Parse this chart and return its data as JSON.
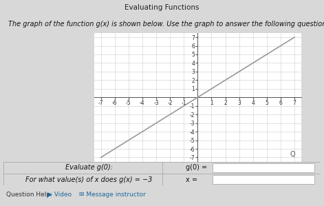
{
  "title": "Evaluating Functions",
  "description": "The graph of the function g(x) is shown below. Use the graph to answer the following questions.",
  "line_x": [
    -7,
    7
  ],
  "line_y": [
    -7,
    7
  ],
  "line_color": "#999999",
  "line_width": 1.2,
  "xlim": [
    -7.5,
    7.5
  ],
  "ylim": [
    -7.5,
    7.5
  ],
  "xticks": [
    -7,
    -6,
    -5,
    -4,
    -3,
    -2,
    -1,
    1,
    2,
    3,
    4,
    5,
    6,
    7
  ],
  "yticks": [
    -7,
    -6,
    -5,
    -4,
    -3,
    -2,
    -1,
    1,
    2,
    3,
    4,
    5,
    6,
    7
  ],
  "grid_color": "#cccccc",
  "grid_linewidth": 0.4,
  "axis_color": "#555555",
  "page_bg": "#d8d8d8",
  "content_bg": "#e8e8e8",
  "graph_bg": "white",
  "table_bg": "#f0f0f0",
  "question1_label": "Evaluate g(0):",
  "question1_answer": "g(0) =",
  "question2_label": "For what value(s) of x does g(x) = −3",
  "question2_answer": "x =",
  "footer_text": "Question Help:",
  "footer_video": "▶ Video",
  "footer_message": "✉ Message instructor",
  "tick_fontsize": 5.5,
  "q_fontsize": 7.0,
  "footer_fontsize": 6.5,
  "title_fontsize": 7.5,
  "desc_fontsize": 7.0
}
